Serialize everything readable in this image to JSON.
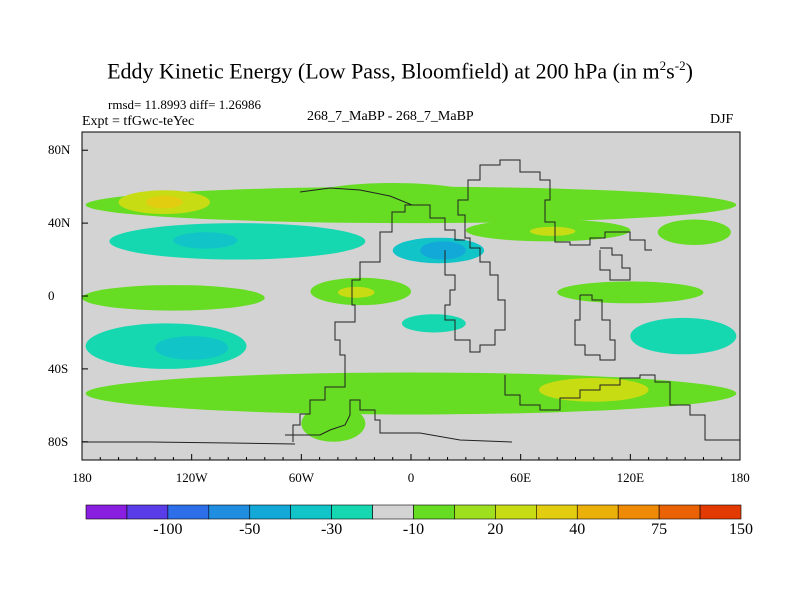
{
  "title": {
    "main": "Eddy Kinetic Energy (Low Pass, Bloomfield) at 200 hPa (in m",
    "sup1": "2",
    "mid": "s",
    "sup2": "-2",
    "end": ")"
  },
  "stats": "rmsd= 11.8993 diff= 1.26986",
  "experiment": "Expt = tfGwc-teYec",
  "run": "268_7_MaBP - 268_7_MaBP",
  "season": "DJF",
  "chart_data": {
    "type": "heatmap",
    "title": "Eddy Kinetic Energy (Low Pass, Bloomfield) at 200 hPa (in m2s-2)",
    "x_ticks": [
      "180",
      "120W",
      "60W",
      "0",
      "60E",
      "120E",
      "180"
    ],
    "y_ticks": [
      "80N",
      "40N",
      "0",
      "40S",
      "80S"
    ],
    "x_range": [
      -180,
      180
    ],
    "y_range": [
      -90,
      90
    ],
    "colorbar": {
      "colors": [
        "#8a1ee0",
        "#5a3ce8",
        "#2d6fe8",
        "#1f8ee0",
        "#12a9d8",
        "#10c4c8",
        "#16d8b0",
        "#d3d3d3",
        "#66dd22",
        "#9ee020",
        "#c8dc14",
        "#e2cd10",
        "#ecb00a",
        "#ee8a06",
        "#ea6204",
        "#e23a02"
      ],
      "labels": [
        "-100",
        "-50",
        "-30",
        "-10",
        "20",
        "40",
        "75",
        "150"
      ]
    },
    "regions": [
      {
        "lon": [
          -178,
          178
        ],
        "lat": [
          40,
          60
        ],
        "level": 20
      },
      {
        "lon": [
          -160,
          -110
        ],
        "lat": [
          45,
          58
        ],
        "level": 40
      },
      {
        "lon": [
          -145,
          -125
        ],
        "lat": [
          48,
          55
        ],
        "level": 50
      },
      {
        "lon": [
          -55,
          35
        ],
        "lat": [
          48,
          62
        ],
        "level": 20
      },
      {
        "lon": [
          -165,
          -25
        ],
        "lat": [
          20,
          40
        ],
        "level": -10
      },
      {
        "lon": [
          -130,
          -95
        ],
        "lat": [
          26,
          35
        ],
        "level": -20
      },
      {
        "lon": [
          -10,
          40
        ],
        "lat": [
          18,
          32
        ],
        "level": -20
      },
      {
        "lon": [
          5,
          30
        ],
        "lat": [
          20,
          30
        ],
        "level": -30
      },
      {
        "lon": [
          30,
          120
        ],
        "lat": [
          30,
          42
        ],
        "level": 20
      },
      {
        "lon": [
          65,
          90
        ],
        "lat": [
          33,
          38
        ],
        "level": 40
      },
      {
        "lon": [
          135,
          175
        ],
        "lat": [
          28,
          42
        ],
        "level": 20
      },
      {
        "lon": [
          -180,
          -80
        ],
        "lat": [
          -8,
          6
        ],
        "level": 20
      },
      {
        "lon": [
          -55,
          0
        ],
        "lat": [
          -5,
          10
        ],
        "level": 20
      },
      {
        "lon": [
          -40,
          -20
        ],
        "lat": [
          -1,
          5
        ],
        "level": 40
      },
      {
        "lon": [
          80,
          160
        ],
        "lat": [
          -4,
          8
        ],
        "level": 20
      },
      {
        "lon": [
          -178,
          -90
        ],
        "lat": [
          -40,
          -15
        ],
        "level": -10
      },
      {
        "lon": [
          -140,
          -100
        ],
        "lat": [
          -35,
          -22
        ],
        "level": -20
      },
      {
        "lon": [
          -5,
          30
        ],
        "lat": [
          -20,
          -10
        ],
        "level": -10
      },
      {
        "lon": [
          120,
          178
        ],
        "lat": [
          -32,
          -12
        ],
        "level": -10
      },
      {
        "lon": [
          -178,
          178
        ],
        "lat": [
          -65,
          -42
        ],
        "level": 20
      },
      {
        "lon": [
          70,
          130
        ],
        "lat": [
          -58,
          -45
        ],
        "level": 40
      },
      {
        "lon": [
          -60,
          -25
        ],
        "lat": [
          -80,
          -60
        ],
        "level": 20
      }
    ]
  }
}
